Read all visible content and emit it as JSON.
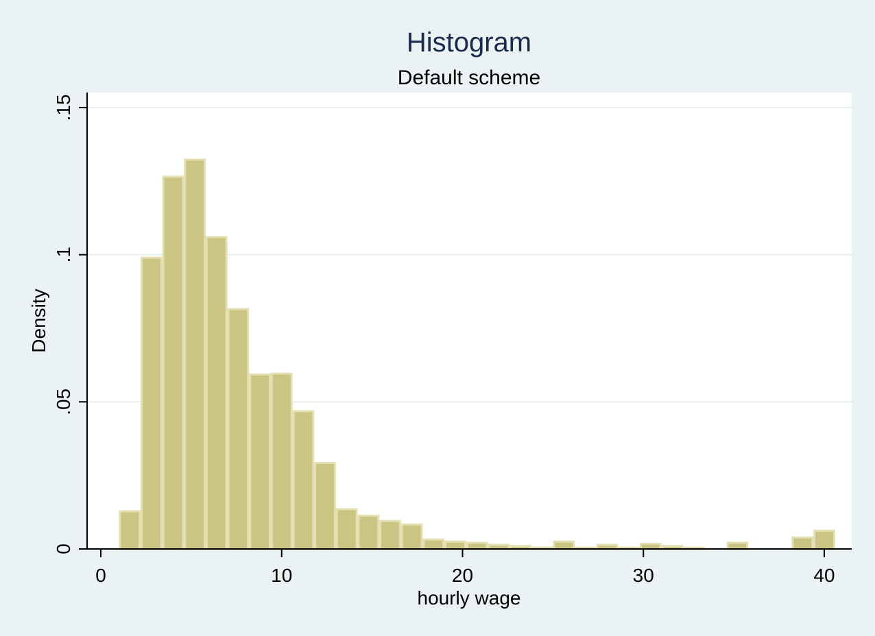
{
  "chart_data": {
    "type": "bar",
    "title": "Histogram",
    "subtitle": "Default scheme",
    "xlabel": "hourly wage",
    "ylabel": "Density",
    "xlim": [
      0,
      41
    ],
    "ylim": [
      0,
      0.15
    ],
    "xticks": [
      {
        "value": 0,
        "label": "0"
      },
      {
        "value": 10,
        "label": "10"
      },
      {
        "value": 20,
        "label": "20"
      },
      {
        "value": 30,
        "label": "30"
      },
      {
        "value": 40,
        "label": "40"
      }
    ],
    "yticks": [
      {
        "value": 0,
        "label": "0"
      },
      {
        "value": 0.05,
        "label": ".05"
      },
      {
        "value": 0.1,
        "label": ".1"
      },
      {
        "value": 0.15,
        "label": ".15"
      }
    ],
    "grid": true,
    "bin_width": 1.2,
    "bins": [
      {
        "x0": 1.0,
        "x1": 2.2,
        "density": 0.0128
      },
      {
        "x0": 2.2,
        "x1": 3.4,
        "density": 0.099
      },
      {
        "x0": 3.4,
        "x1": 4.6,
        "density": 0.1265
      },
      {
        "x0": 4.6,
        "x1": 5.8,
        "density": 0.1323
      },
      {
        "x0": 5.8,
        "x1": 7.0,
        "density": 0.106
      },
      {
        "x0": 7.0,
        "x1": 8.2,
        "density": 0.0815
      },
      {
        "x0": 8.2,
        "x1": 9.4,
        "density": 0.0593
      },
      {
        "x0": 9.4,
        "x1": 10.6,
        "density": 0.0596
      },
      {
        "x0": 10.6,
        "x1": 11.8,
        "density": 0.0468
      },
      {
        "x0": 11.8,
        "x1": 13.0,
        "density": 0.0292
      },
      {
        "x0": 13.0,
        "x1": 14.2,
        "density": 0.0135
      },
      {
        "x0": 14.2,
        "x1": 15.4,
        "density": 0.0113
      },
      {
        "x0": 15.4,
        "x1": 16.6,
        "density": 0.0095
      },
      {
        "x0": 16.6,
        "x1": 17.8,
        "density": 0.0083
      },
      {
        "x0": 17.8,
        "x1": 19.0,
        "density": 0.0032
      },
      {
        "x0": 19.0,
        "x1": 20.2,
        "density": 0.0025
      },
      {
        "x0": 20.2,
        "x1": 21.4,
        "density": 0.0021
      },
      {
        "x0": 21.4,
        "x1": 22.6,
        "density": 0.0014
      },
      {
        "x0": 22.6,
        "x1": 23.8,
        "density": 0.001
      },
      {
        "x0": 23.8,
        "x1": 25.0,
        "density": 0.0005
      },
      {
        "x0": 25.0,
        "x1": 26.2,
        "density": 0.0025
      },
      {
        "x0": 26.2,
        "x1": 27.4,
        "density": 0.0004
      },
      {
        "x0": 27.4,
        "x1": 28.6,
        "density": 0.0014
      },
      {
        "x0": 28.6,
        "x1": 29.8,
        "density": 0.0004
      },
      {
        "x0": 29.8,
        "x1": 31.0,
        "density": 0.0018
      },
      {
        "x0": 31.0,
        "x1": 32.2,
        "density": 0.001
      },
      {
        "x0": 32.2,
        "x1": 33.4,
        "density": 0.0004
      },
      {
        "x0": 33.4,
        "x1": 34.6,
        "density": 0.0
      },
      {
        "x0": 34.6,
        "x1": 35.8,
        "density": 0.0021
      },
      {
        "x0": 35.8,
        "x1": 37.0,
        "density": 0.0
      },
      {
        "x0": 37.0,
        "x1": 38.2,
        "density": 0.0
      },
      {
        "x0": 38.2,
        "x1": 39.4,
        "density": 0.0039
      },
      {
        "x0": 39.4,
        "x1": 40.6,
        "density": 0.0062
      }
    ],
    "colors": {
      "background": "#eaf2f3",
      "plot_background": "#ffffff",
      "bar_fill": "#cbc482",
      "bar_stroke": "#e3dfb0",
      "grid": "#e6efef",
      "axis": "#000000",
      "title": "#1a2a4a"
    }
  }
}
